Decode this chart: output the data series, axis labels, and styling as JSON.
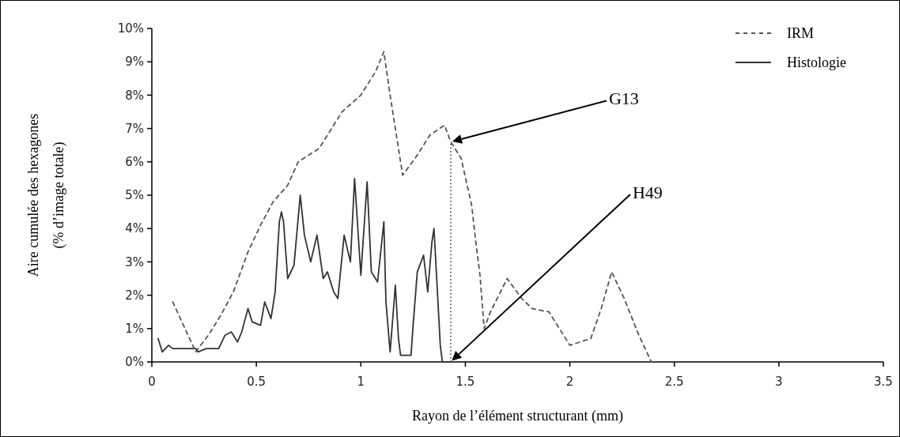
{
  "chart_data": {
    "type": "line",
    "xlabel": "Rayon de l’élément structurant (mm)",
    "ylabel": "Aire cumulée des hexagones\n(% d’image totale)",
    "xlim": [
      0,
      3.5
    ],
    "xticks": [
      0,
      0.5,
      1,
      1.5,
      2,
      2.5,
      3,
      3.5
    ],
    "ylim": [
      0,
      10
    ],
    "yticks": [
      {
        "value": 0,
        "label": "0%"
      },
      {
        "value": 1,
        "label": "1%"
      },
      {
        "value": 2,
        "label": "2%"
      },
      {
        "value": 3,
        "label": "3%"
      },
      {
        "value": 4,
        "label": "4%"
      },
      {
        "value": 5,
        "label": "5%"
      },
      {
        "value": 6,
        "label": "6%"
      },
      {
        "value": 7,
        "label": "7%"
      },
      {
        "value": 8,
        "label": "8%"
      },
      {
        "value": 9,
        "label": "9%"
      },
      {
        "value": 10,
        "label": "10%"
      }
    ],
    "grid": false,
    "legend": "top right",
    "marker": "none",
    "series": [
      {
        "name": "IRM",
        "color": "#555555",
        "line_style": "dashed",
        "x": [
          0.1,
          0.21,
          0.27,
          0.33,
          0.39,
          0.46,
          0.52,
          0.58,
          0.65,
          0.7,
          0.8,
          0.86,
          0.91,
          1.0,
          1.07,
          1.11,
          1.14,
          1.2,
          1.27,
          1.33,
          1.4,
          1.43,
          1.48,
          1.53,
          1.55,
          1.57,
          1.59,
          1.62,
          1.7,
          1.77,
          1.82,
          1.9,
          2.0,
          2.1,
          2.15,
          2.2,
          2.26,
          2.33,
          2.39
        ],
        "values": [
          1.8,
          0.3,
          0.8,
          1.4,
          2.1,
          3.3,
          4.1,
          4.8,
          5.3,
          6.0,
          6.4,
          7.0,
          7.5,
          8.0,
          8.7,
          9.3,
          8.0,
          5.6,
          6.2,
          6.8,
          7.1,
          6.6,
          6.1,
          4.7,
          3.6,
          2.6,
          1.0,
          1.5,
          2.5,
          1.9,
          1.6,
          1.5,
          0.5,
          0.7,
          1.6,
          2.7,
          1.9,
          0.8,
          0
        ]
      },
      {
        "name": "Histologie",
        "color": "#333333",
        "line_style": "solid",
        "x": [
          0.03,
          0.05,
          0.08,
          0.1,
          0.14,
          0.21,
          0.22,
          0.26,
          0.32,
          0.35,
          0.38,
          0.41,
          0.43,
          0.46,
          0.48,
          0.52,
          0.54,
          0.57,
          0.59,
          0.61,
          0.62,
          0.63,
          0.65,
          0.68,
          0.71,
          0.73,
          0.76,
          0.79,
          0.82,
          0.84,
          0.87,
          0.89,
          0.92,
          0.95,
          0.97,
          1.0,
          1.03,
          1.05,
          1.08,
          1.11,
          1.12,
          1.14,
          1.165,
          1.18,
          1.19,
          1.24,
          1.25,
          1.27,
          1.3,
          1.32,
          1.34,
          1.35,
          1.38,
          1.39,
          1.43
        ],
        "values": [
          0.7,
          0.3,
          0.5,
          0.4,
          0.4,
          0.4,
          0.3,
          0.4,
          0.4,
          0.8,
          0.9,
          0.6,
          0.9,
          1.6,
          1.2,
          1.1,
          1.8,
          1.3,
          2.1,
          4.2,
          4.5,
          4.2,
          2.5,
          2.9,
          5.0,
          3.8,
          3.0,
          3.8,
          2.5,
          2.7,
          2.1,
          1.9,
          3.8,
          3.0,
          5.5,
          2.6,
          5.4,
          2.7,
          2.4,
          4.2,
          1.8,
          0.3,
          2.3,
          0.7,
          0.2,
          0.2,
          1.1,
          2.7,
          3.2,
          2.1,
          3.6,
          4.0,
          0.5,
          0,
          0
        ]
      }
    ],
    "ref_lines": [
      {
        "axis": "x",
        "value": 1.43,
        "line_style": "dotted",
        "color": "#000000"
      }
    ],
    "annotations": [
      "G13",
      "H49"
    ]
  }
}
